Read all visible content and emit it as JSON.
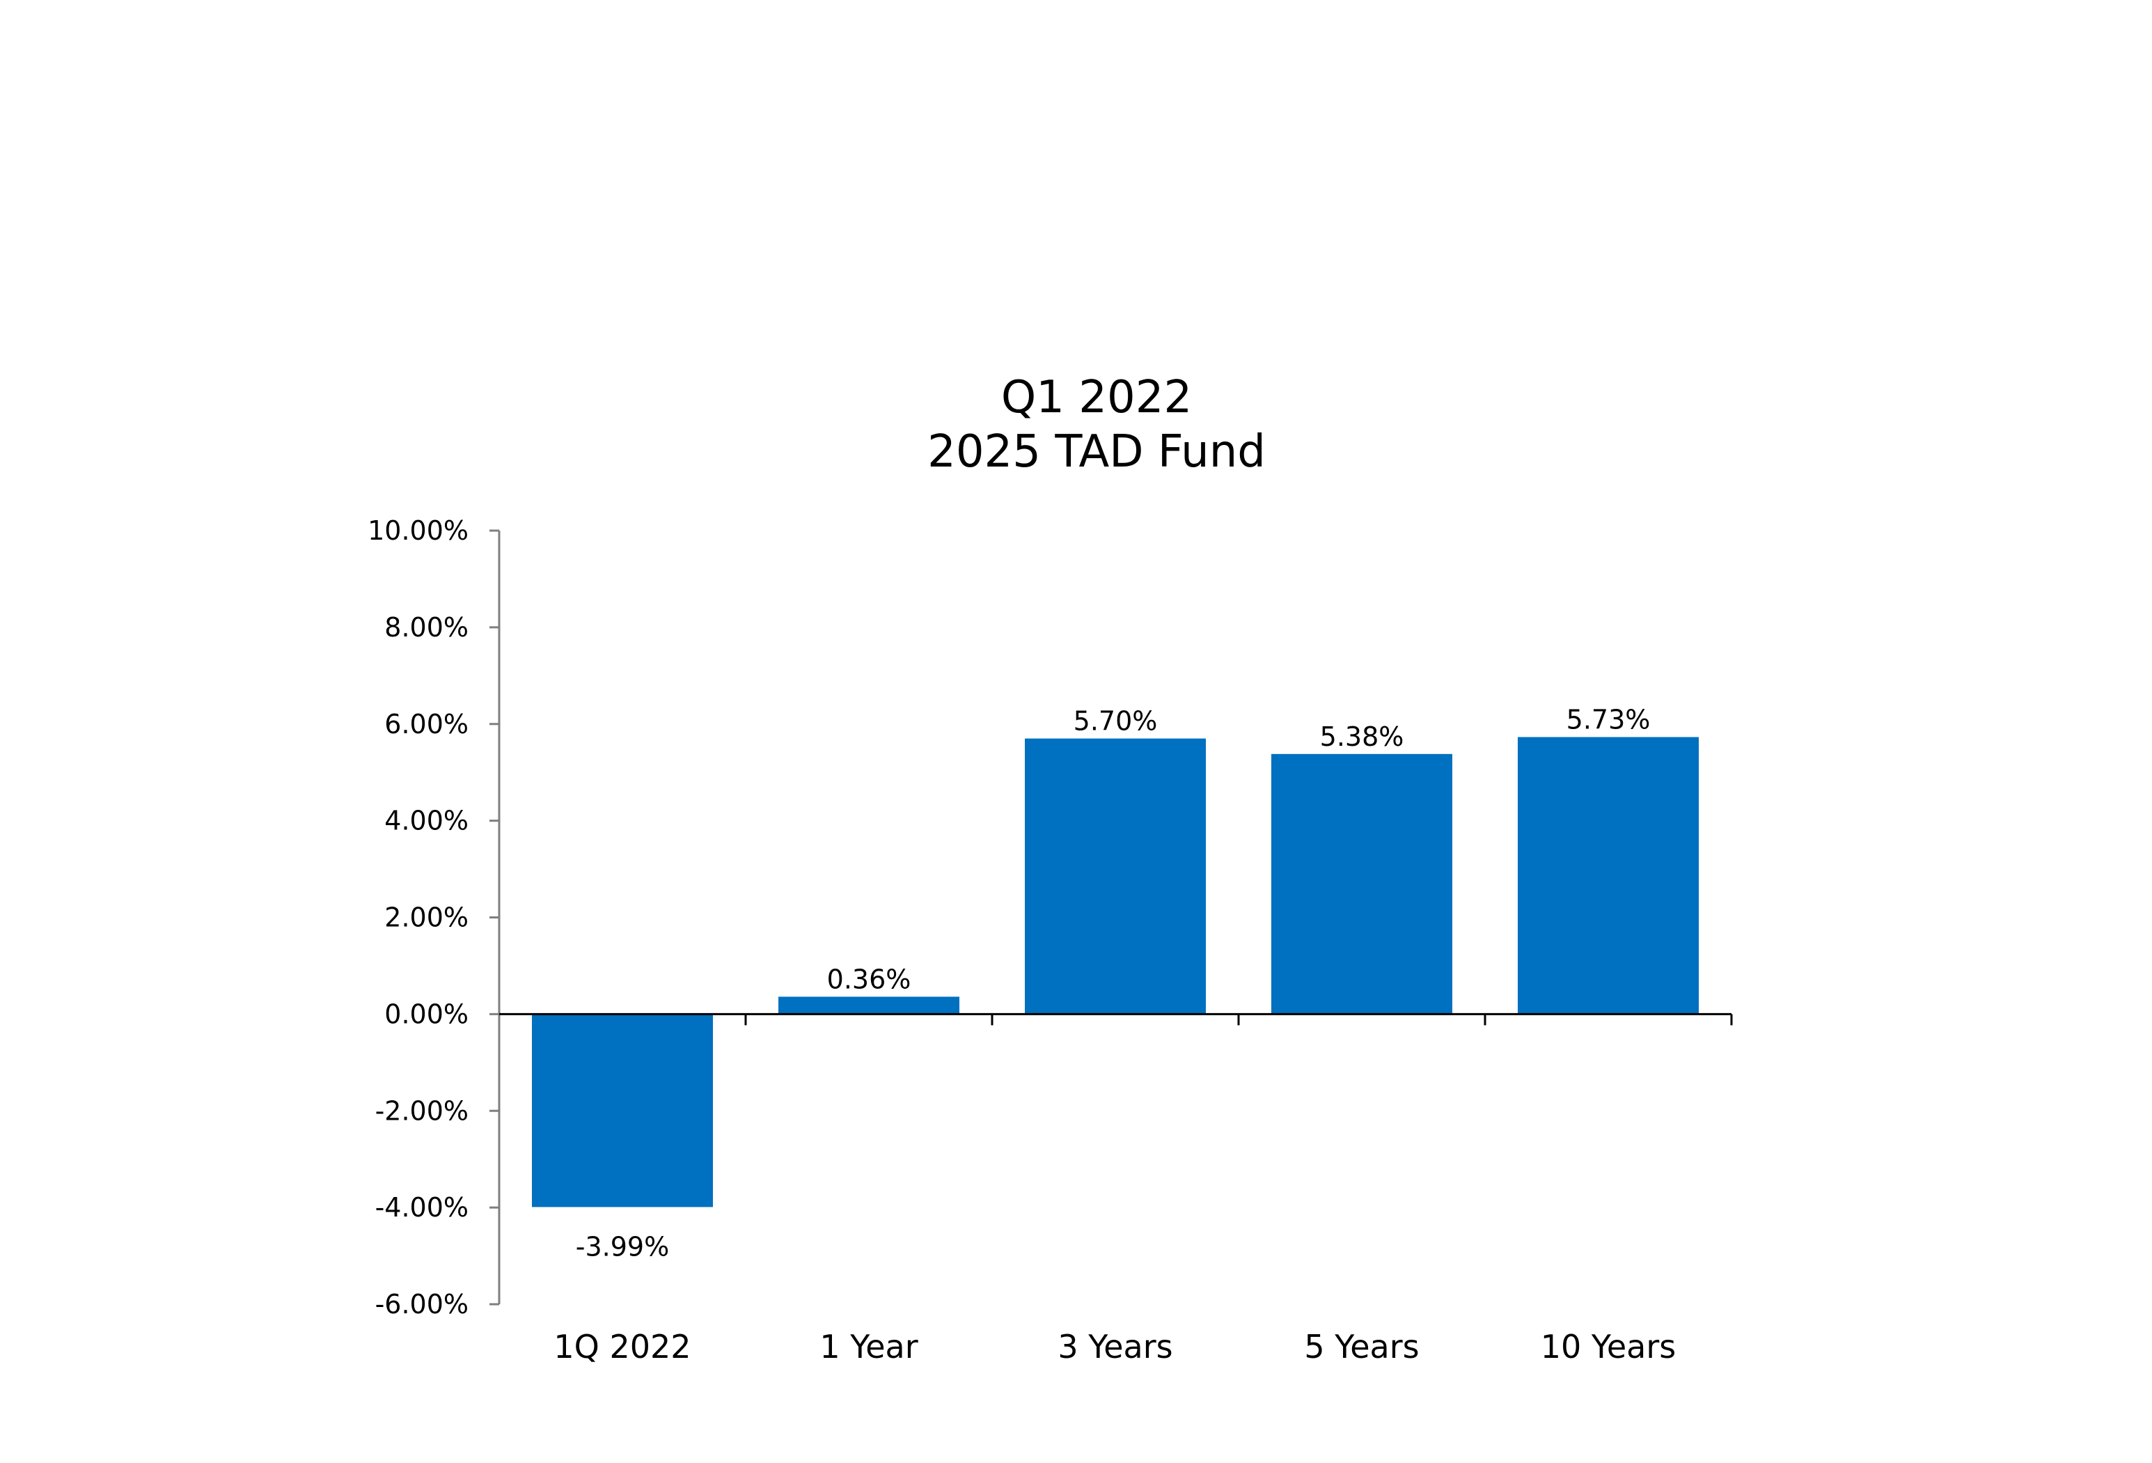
{
  "chart_data": {
    "type": "bar",
    "title_lines": [
      "Q1 2022",
      "2025 TAD Fund"
    ],
    "categories": [
      "1Q 2022",
      "1 Year",
      "3 Years",
      "5 Years",
      "10 Years"
    ],
    "values": [
      -3.99,
      0.36,
      5.7,
      5.38,
      5.73
    ],
    "value_labels": [
      "-3.99%",
      "0.36%",
      "5.70%",
      "5.38%",
      "5.73%"
    ],
    "xlabel": "",
    "ylabel": "",
    "ylim": [
      -6,
      10
    ],
    "ytick_values": [
      10,
      8,
      6,
      4,
      2,
      0,
      -2,
      -4,
      -6
    ],
    "ytick_labels": [
      "10.00%",
      "8.00%",
      "6.00%",
      "4.00%",
      "2.00%",
      "0.00%",
      "-2.00%",
      "-4.00%",
      "-6.00%"
    ],
    "grid": false,
    "legend": "none",
    "bar_color": "#0070C0",
    "axis_color": "#7F7F7F"
  }
}
